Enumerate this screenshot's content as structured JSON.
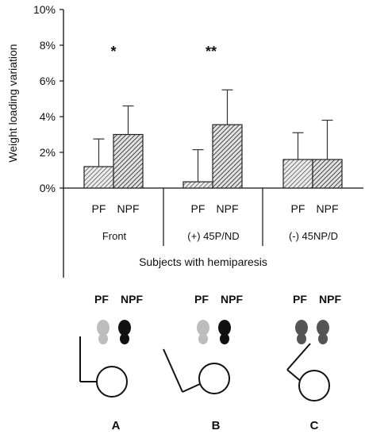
{
  "chart_data": {
    "type": "bar",
    "ylabel": "Weight loading variation",
    "yticks": [
      "0%",
      "2%",
      "4%",
      "6%",
      "8%",
      "10%"
    ],
    "ylim": [
      0,
      10
    ],
    "bar_categories": [
      "PF",
      "NPF"
    ],
    "groups": [
      {
        "label": "Front",
        "values": [
          1.2,
          3.0
        ],
        "errors": [
          1.55,
          1.6
        ],
        "significance": "*"
      },
      {
        "label": "(+) 45P/ND",
        "values": [
          0.35,
          3.55
        ],
        "errors": [
          1.8,
          1.95
        ],
        "significance": "**"
      },
      {
        "label": "(-) 45NP/D",
        "values": [
          1.6,
          1.6
        ],
        "errors": [
          1.5,
          2.2
        ],
        "significance": ""
      }
    ],
    "group_axis_label": "Subjects with hemiparesis",
    "grid": false,
    "legend": "none"
  },
  "diagrams": {
    "panels": [
      {
        "letter": "A",
        "foot_labels": [
          "PF",
          "NPF"
        ],
        "pf_color": "#bdbdbd",
        "npf_color": "#111111"
      },
      {
        "letter": "B",
        "foot_labels": [
          "PF",
          "NPF"
        ],
        "pf_color": "#bdbdbd",
        "npf_color": "#111111"
      },
      {
        "letter": "C",
        "foot_labels": [
          "PF",
          "NPF"
        ],
        "pf_color": "#555555",
        "npf_color": "#555555"
      }
    ]
  }
}
